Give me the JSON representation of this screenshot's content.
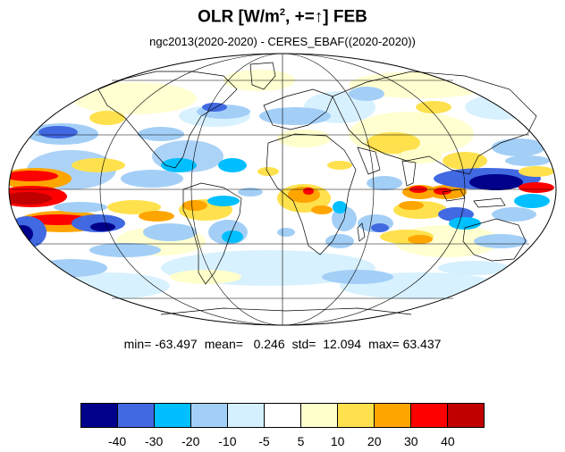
{
  "header": {
    "title_main": "OLR [W/m",
    "title_sup": "2",
    "title_rest": ", +=↑] FEB",
    "subtitle": "ngc2013(2020-2020) - CERES_EBAF((2020-2020))"
  },
  "stats": {
    "min": "min= -63.497",
    "mean": "mean=   0.246",
    "std": "std=  12.094",
    "max": "max= 63.437"
  },
  "colorbar": {
    "colors": [
      "#00008b",
      "#4169e1",
      "#00bfff",
      "#a3cff7",
      "#d4f0ff",
      "#ffffff",
      "#ffffcc",
      "#ffe14d",
      "#ffa500",
      "#ff0000",
      "#c00000"
    ],
    "labels": [
      "-40",
      "-30",
      "-20",
      "-10",
      "-5",
      "5",
      "10",
      "20",
      "30",
      "40"
    ]
  },
  "colors": {
    "land_outline": "#000000",
    "grid": "#000000"
  }
}
